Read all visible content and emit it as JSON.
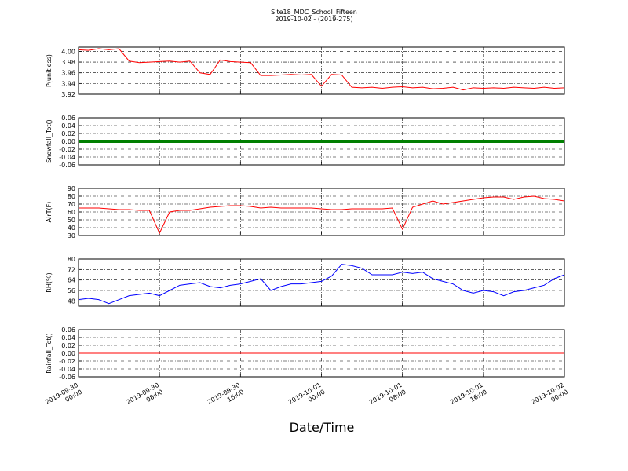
{
  "chart_data": {
    "type": "line",
    "title": "Site18_MDC_School_Fifteen",
    "subtitle": "2019-10-02 - (2019-275)",
    "xlabel": "Date/Time",
    "grid": true,
    "x": [
      "2019-09-30 00:00",
      "2019-09-30 01:00",
      "2019-09-30 02:00",
      "2019-09-30 03:00",
      "2019-09-30 04:00",
      "2019-09-30 05:00",
      "2019-09-30 06:00",
      "2019-09-30 07:00",
      "2019-09-30 08:00",
      "2019-09-30 09:00",
      "2019-09-30 10:00",
      "2019-09-30 11:00",
      "2019-09-30 12:00",
      "2019-09-30 13:00",
      "2019-09-30 14:00",
      "2019-09-30 15:00",
      "2019-09-30 16:00",
      "2019-09-30 17:00",
      "2019-09-30 18:00",
      "2019-09-30 19:00",
      "2019-09-30 20:00",
      "2019-09-30 21:00",
      "2019-09-30 22:00",
      "2019-09-30 23:00",
      "2019-10-01 00:00",
      "2019-10-01 01:00",
      "2019-10-01 02:00",
      "2019-10-01 03:00",
      "2019-10-01 04:00",
      "2019-10-01 05:00",
      "2019-10-01 06:00",
      "2019-10-01 07:00",
      "2019-10-01 08:00",
      "2019-10-01 09:00",
      "2019-10-01 10:00",
      "2019-10-01 11:00",
      "2019-10-01 12:00",
      "2019-10-01 13:00",
      "2019-10-01 14:00",
      "2019-10-01 15:00",
      "2019-10-01 16:00",
      "2019-10-01 17:00",
      "2019-10-01 18:00",
      "2019-10-01 19:00",
      "2019-10-01 20:00",
      "2019-10-01 21:00",
      "2019-10-01 22:00",
      "2019-10-01 23:00",
      "2019-10-02 00:00"
    ],
    "xlim": [
      "2019-09-30 00:00",
      "2019-10-02 00:00"
    ],
    "xticks": [
      {
        "value": "2019-09-30 00:00",
        "label": "2019-09-30\n00:00"
      },
      {
        "value": "2019-09-30 08:00",
        "label": "2019-09-30\n08:00"
      },
      {
        "value": "2019-09-30 16:00",
        "label": "2019-09-30\n16:00"
      },
      {
        "value": "2019-10-01 00:00",
        "label": "2019-10-01\n00:00"
      },
      {
        "value": "2019-10-01 08:00",
        "label": "2019-10-01\n08:00"
      },
      {
        "value": "2019-10-01 16:00",
        "label": "2019-10-01\n16:00"
      },
      {
        "value": "2019-10-02 00:00",
        "label": "2019-10-02\n00:00"
      }
    ],
    "panels": [
      {
        "ylabel": "P(unitless)",
        "ylim": [
          3.92,
          4.008
        ],
        "yticks": [
          3.92,
          3.94,
          3.96,
          3.98,
          {
            "value": 4,
            "label": "4.00"
          }
        ],
        "series": [
          {
            "color": "#ff0000",
            "values": [
              4.003,
              4.002,
              4.005,
              4.003,
              4.005,
              3.982,
              3.979,
              3.98,
              3.981,
              3.982,
              3.98,
              3.982,
              3.96,
              3.957,
              3.984,
              3.981,
              3.98,
              3.979,
              3.955,
              3.955,
              3.956,
              3.957,
              3.956,
              3.957,
              3.935,
              3.957,
              3.956,
              3.933,
              3.932,
              3.933,
              3.931,
              3.933,
              3.934,
              3.932,
              3.933,
              3.93,
              3.931,
              3.933,
              3.928,
              3.932,
              3.931,
              3.932,
              3.931,
              3.933,
              3.932,
              3.931,
              3.933,
              3.931,
              3.932
            ]
          }
        ]
      },
      {
        "ylabel": "Snowfall_Tot()",
        "ylim": [
          -0.06,
          0.06
        ],
        "yticks": [
          -0.06,
          -0.04,
          -0.02,
          {
            "value": 0,
            "label": "0.00"
          },
          0.02,
          0.04,
          0.06
        ],
        "series": [
          {
            "color": "#007f00",
            "width": 4,
            "values": [
              0,
              0,
              0,
              0,
              0,
              0,
              0,
              0,
              0,
              0,
              0,
              0,
              0,
              0,
              0,
              0,
              0,
              0,
              0,
              0,
              0,
              0,
              0,
              0,
              0,
              0,
              0,
              0,
              0,
              0,
              0,
              0,
              0,
              0,
              0,
              0,
              0,
              0,
              0,
              0,
              0,
              0,
              0,
              0,
              0,
              0,
              0,
              0,
              0
            ]
          }
        ]
      },
      {
        "ylabel": "AirT(F)",
        "ylim": [
          30,
          90
        ],
        "yticks": [
          30,
          40,
          50,
          60,
          70,
          80,
          90
        ],
        "series": [
          {
            "color": "#ff0000",
            "values": [
              65,
              65,
              65,
              64,
              63,
              63,
              62,
              62,
              33,
              60,
              62,
              62,
              64,
              66,
              67,
              68,
              68,
              67,
              65,
              66,
              65,
              65,
              65,
              65,
              64,
              63,
              63,
              64,
              64,
              64,
              64,
              65,
              38,
              66,
              70,
              74,
              70,
              72,
              74,
              76,
              78,
              79,
              79,
              76,
              79,
              80,
              77,
              76,
              74
            ]
          }
        ]
      },
      {
        "ylabel": "RH(%)",
        "ylim": [
          44,
          80
        ],
        "yticks": [
          48,
          56,
          64,
          72,
          80
        ],
        "series": [
          {
            "color": "#0000ff",
            "values": [
              49,
              50,
              49,
              46,
              49,
              52,
              53,
              54,
              52,
              56,
              60,
              61,
              62,
              59,
              58,
              60,
              61,
              63,
              65,
              56,
              59,
              61,
              61,
              62,
              63,
              67,
              76,
              75,
              73,
              68,
              68,
              68,
              70,
              69,
              70,
              65,
              63,
              61,
              56,
              54,
              56,
              55,
              52,
              55,
              56,
              58,
              60,
              65,
              68
            ]
          }
        ]
      },
      {
        "ylabel": "Rainfall_Tot()",
        "ylim": [
          -0.06,
          0.06
        ],
        "yticks": [
          -0.06,
          -0.04,
          -0.02,
          {
            "value": 0,
            "label": "0.00"
          },
          0.02,
          0.04,
          0.06
        ],
        "series": [
          {
            "color": "#ff0000",
            "values": [
              0,
              0,
              0,
              0,
              0,
              0,
              0,
              0,
              0,
              0,
              0,
              0,
              0,
              0,
              0,
              0,
              0,
              0,
              0,
              0,
              0,
              0,
              0,
              0,
              0,
              0,
              0,
              0,
              0,
              0,
              0,
              0,
              0,
              0,
              0,
              0,
              0,
              0,
              0,
              0,
              0,
              0,
              0,
              0,
              0,
              0,
              0,
              0,
              0
            ]
          }
        ]
      }
    ]
  }
}
